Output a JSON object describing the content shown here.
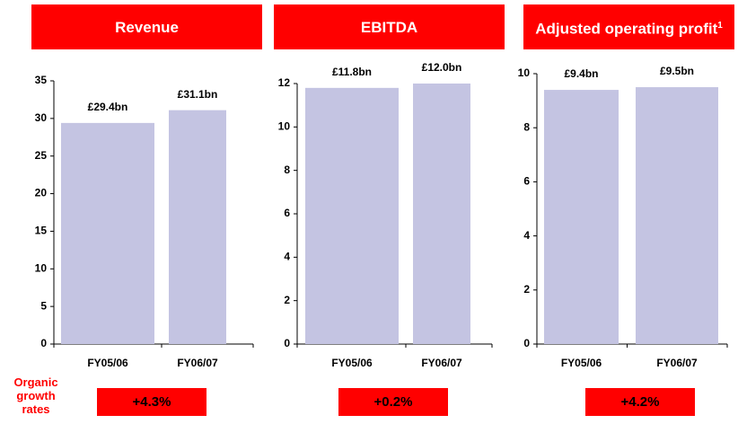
{
  "chart_data": [
    {
      "type": "bar",
      "title": "Revenue",
      "categories": [
        "FY05/06",
        "FY06/07"
      ],
      "values": [
        29.4,
        31.1
      ],
      "value_labels": [
        "£29.4bn",
        "£31.1bn"
      ],
      "color": "#c4c4e2",
      "ylim": [
        0,
        35
      ],
      "yticks": [
        0,
        5,
        10,
        15,
        20,
        25,
        30,
        35
      ]
    },
    {
      "type": "bar",
      "title": "EBITDA",
      "categories": [
        "FY05/06",
        "FY06/07"
      ],
      "values": [
        11.8,
        12.0
      ],
      "value_labels": [
        "£11.8bn",
        "£12.0bn"
      ],
      "color": "#c4c4e2",
      "ylim": [
        0,
        12
      ],
      "yticks": [
        0,
        2,
        4,
        6,
        8,
        10,
        12
      ]
    },
    {
      "type": "bar",
      "title": "Adjusted operating profit",
      "footnote_mark": "1",
      "categories": [
        "FY05/06",
        "FY06/07"
      ],
      "values": [
        9.4,
        9.5
      ],
      "value_labels": [
        "£9.4bn",
        "£9.5bn"
      ],
      "color": "#c4c4e2",
      "ylim": [
        0,
        10
      ],
      "yticks": [
        0,
        2,
        4,
        6,
        8,
        10
      ]
    }
  ],
  "organic_growth": {
    "title": "Organic growth rates",
    "rates": [
      "+4.3%",
      "+0.2%",
      "+4.2%"
    ]
  }
}
